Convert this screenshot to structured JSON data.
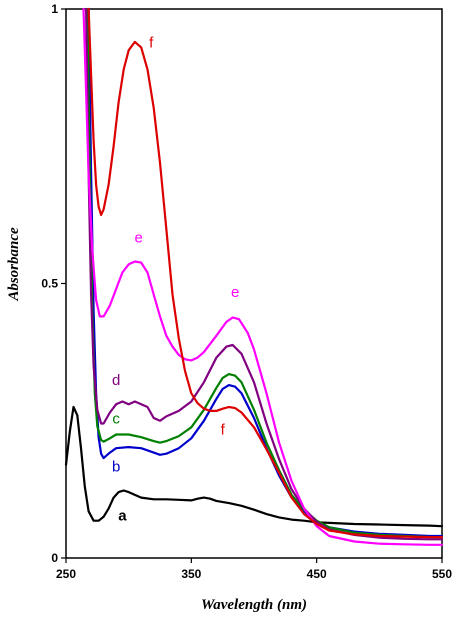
{
  "chart_data": {
    "type": "line",
    "xlabel": "Wavelength (nm)",
    "ylabel": "Absorbance",
    "xlim": [
      250,
      550
    ],
    "ylim": [
      0,
      1
    ],
    "x_ticks": [
      {
        "value": 250,
        "label": "250"
      },
      {
        "value": 350,
        "label": "350"
      },
      {
        "value": 450,
        "label": "450"
      },
      {
        "value": 550,
        "label": "550"
      }
    ],
    "y_ticks": [
      {
        "value": 0,
        "label": "0"
      },
      {
        "value": 0.5,
        "label": "0.5"
      },
      {
        "value": 1,
        "label": "1"
      }
    ],
    "grid": false,
    "legend": "none",
    "series": [
      {
        "name": "a",
        "color": "#000000",
        "points": [
          [
            250,
            0.17
          ],
          [
            253,
            0.23
          ],
          [
            256,
            0.275
          ],
          [
            259,
            0.26
          ],
          [
            262,
            0.2
          ],
          [
            265,
            0.13
          ],
          [
            268,
            0.085
          ],
          [
            272,
            0.068
          ],
          [
            276,
            0.068
          ],
          [
            280,
            0.075
          ],
          [
            284,
            0.09
          ],
          [
            288,
            0.11
          ],
          [
            292,
            0.12
          ],
          [
            296,
            0.123
          ],
          [
            300,
            0.12
          ],
          [
            305,
            0.115
          ],
          [
            310,
            0.11
          ],
          [
            320,
            0.107
          ],
          [
            330,
            0.107
          ],
          [
            340,
            0.106
          ],
          [
            350,
            0.105
          ],
          [
            355,
            0.108
          ],
          [
            360,
            0.11
          ],
          [
            365,
            0.108
          ],
          [
            370,
            0.104
          ],
          [
            380,
            0.1
          ],
          [
            390,
            0.095
          ],
          [
            400,
            0.088
          ],
          [
            410,
            0.08
          ],
          [
            420,
            0.074
          ],
          [
            430,
            0.07
          ],
          [
            440,
            0.068
          ],
          [
            450,
            0.065
          ],
          [
            460,
            0.064
          ],
          [
            480,
            0.062
          ],
          [
            500,
            0.061
          ],
          [
            520,
            0.06
          ],
          [
            540,
            0.059
          ],
          [
            550,
            0.058
          ]
        ]
      },
      {
        "name": "b",
        "color": "#0000cc",
        "points": [
          [
            268,
            1.0
          ],
          [
            270,
            0.7
          ],
          [
            272,
            0.45
          ],
          [
            274,
            0.3
          ],
          [
            276,
            0.22
          ],
          [
            278,
            0.19
          ],
          [
            280,
            0.182
          ],
          [
            285,
            0.192
          ],
          [
            290,
            0.2
          ],
          [
            300,
            0.202
          ],
          [
            310,
            0.2
          ],
          [
            320,
            0.192
          ],
          [
            325,
            0.188
          ],
          [
            330,
            0.19
          ],
          [
            340,
            0.2
          ],
          [
            350,
            0.218
          ],
          [
            360,
            0.25
          ],
          [
            370,
            0.29
          ],
          [
            375,
            0.308
          ],
          [
            380,
            0.315
          ],
          [
            385,
            0.312
          ],
          [
            390,
            0.3
          ],
          [
            400,
            0.255
          ],
          [
            410,
            0.2
          ],
          [
            420,
            0.15
          ],
          [
            430,
            0.11
          ],
          [
            440,
            0.085
          ],
          [
            450,
            0.066
          ],
          [
            460,
            0.056
          ],
          [
            480,
            0.048
          ],
          [
            500,
            0.044
          ],
          [
            520,
            0.042
          ],
          [
            540,
            0.04
          ],
          [
            550,
            0.04
          ]
        ]
      },
      {
        "name": "c",
        "color": "#008000",
        "points": [
          [
            267,
            1.0
          ],
          [
            269,
            0.7
          ],
          [
            271,
            0.45
          ],
          [
            273,
            0.3
          ],
          [
            275,
            0.24
          ],
          [
            278,
            0.215
          ],
          [
            280,
            0.212
          ],
          [
            285,
            0.218
          ],
          [
            290,
            0.225
          ],
          [
            300,
            0.225
          ],
          [
            310,
            0.22
          ],
          [
            320,
            0.213
          ],
          [
            325,
            0.21
          ],
          [
            330,
            0.213
          ],
          [
            340,
            0.222
          ],
          [
            350,
            0.238
          ],
          [
            360,
            0.27
          ],
          [
            370,
            0.31
          ],
          [
            375,
            0.328
          ],
          [
            380,
            0.335
          ],
          [
            385,
            0.332
          ],
          [
            390,
            0.32
          ],
          [
            400,
            0.27
          ],
          [
            410,
            0.21
          ],
          [
            420,
            0.16
          ],
          [
            430,
            0.115
          ],
          [
            440,
            0.088
          ],
          [
            450,
            0.068
          ],
          [
            460,
            0.056
          ],
          [
            480,
            0.046
          ],
          [
            500,
            0.042
          ],
          [
            520,
            0.04
          ],
          [
            540,
            0.038
          ],
          [
            550,
            0.038
          ]
        ]
      },
      {
        "name": "d",
        "color": "#800080",
        "points": [
          [
            266,
            1.0
          ],
          [
            268,
            0.7
          ],
          [
            270,
            0.48
          ],
          [
            272,
            0.35
          ],
          [
            275,
            0.27
          ],
          [
            278,
            0.245
          ],
          [
            280,
            0.245
          ],
          [
            285,
            0.265
          ],
          [
            290,
            0.28
          ],
          [
            295,
            0.285
          ],
          [
            300,
            0.28
          ],
          [
            305,
            0.285
          ],
          [
            310,
            0.28
          ],
          [
            315,
            0.275
          ],
          [
            320,
            0.255
          ],
          [
            325,
            0.25
          ],
          [
            330,
            0.258
          ],
          [
            340,
            0.268
          ],
          [
            350,
            0.285
          ],
          [
            360,
            0.32
          ],
          [
            370,
            0.365
          ],
          [
            378,
            0.385
          ],
          [
            383,
            0.388
          ],
          [
            390,
            0.372
          ],
          [
            400,
            0.32
          ],
          [
            410,
            0.245
          ],
          [
            420,
            0.18
          ],
          [
            430,
            0.125
          ],
          [
            440,
            0.09
          ],
          [
            450,
            0.066
          ],
          [
            460,
            0.052
          ],
          [
            480,
            0.042
          ],
          [
            500,
            0.037
          ],
          [
            520,
            0.035
          ],
          [
            540,
            0.034
          ],
          [
            550,
            0.034
          ]
        ]
      },
      {
        "name": "e",
        "color": "#ff00ff",
        "points": [
          [
            264,
            1.0
          ],
          [
            266,
            0.85
          ],
          [
            268,
            0.7
          ],
          [
            271,
            0.56
          ],
          [
            274,
            0.47
          ],
          [
            277,
            0.44
          ],
          [
            280,
            0.44
          ],
          [
            285,
            0.46
          ],
          [
            290,
            0.49
          ],
          [
            295,
            0.52
          ],
          [
            300,
            0.535
          ],
          [
            305,
            0.54
          ],
          [
            310,
            0.538
          ],
          [
            315,
            0.52
          ],
          [
            320,
            0.48
          ],
          [
            325,
            0.44
          ],
          [
            330,
            0.405
          ],
          [
            335,
            0.385
          ],
          [
            340,
            0.37
          ],
          [
            345,
            0.362
          ],
          [
            350,
            0.36
          ],
          [
            355,
            0.365
          ],
          [
            360,
            0.375
          ],
          [
            370,
            0.405
          ],
          [
            378,
            0.43
          ],
          [
            383,
            0.438
          ],
          [
            388,
            0.435
          ],
          [
            395,
            0.41
          ],
          [
            400,
            0.38
          ],
          [
            410,
            0.3
          ],
          [
            420,
            0.21
          ],
          [
            430,
            0.14
          ],
          [
            440,
            0.09
          ],
          [
            450,
            0.058
          ],
          [
            460,
            0.04
          ],
          [
            480,
            0.03
          ],
          [
            500,
            0.026
          ],
          [
            520,
            0.025
          ],
          [
            540,
            0.024
          ],
          [
            550,
            0.024
          ]
        ]
      },
      {
        "name": "f",
        "color": "#dd0000",
        "points": [
          [
            268,
            1.0
          ],
          [
            270,
            0.88
          ],
          [
            272,
            0.76
          ],
          [
            274,
            0.68
          ],
          [
            276,
            0.64
          ],
          [
            278,
            0.625
          ],
          [
            280,
            0.635
          ],
          [
            284,
            0.68
          ],
          [
            288,
            0.75
          ],
          [
            292,
            0.83
          ],
          [
            296,
            0.89
          ],
          [
            300,
            0.925
          ],
          [
            305,
            0.94
          ],
          [
            310,
            0.93
          ],
          [
            315,
            0.89
          ],
          [
            320,
            0.82
          ],
          [
            325,
            0.72
          ],
          [
            330,
            0.6
          ],
          [
            335,
            0.48
          ],
          [
            340,
            0.4
          ],
          [
            345,
            0.34
          ],
          [
            350,
            0.3
          ],
          [
            355,
            0.282
          ],
          [
            360,
            0.272
          ],
          [
            365,
            0.268
          ],
          [
            370,
            0.268
          ],
          [
            375,
            0.272
          ],
          [
            380,
            0.275
          ],
          [
            385,
            0.273
          ],
          [
            390,
            0.265
          ],
          [
            400,
            0.238
          ],
          [
            410,
            0.198
          ],
          [
            420,
            0.155
          ],
          [
            430,
            0.11
          ],
          [
            440,
            0.08
          ],
          [
            450,
            0.062
          ],
          [
            460,
            0.05
          ],
          [
            480,
            0.043
          ],
          [
            500,
            0.04
          ],
          [
            520,
            0.039
          ],
          [
            540,
            0.038
          ],
          [
            550,
            0.038
          ]
        ]
      }
    ],
    "annotations": [
      {
        "text": "f",
        "color": "#dd0000",
        "x": 318,
        "y": 0.93
      },
      {
        "text": "e",
        "color": "#ff00ff",
        "x": 308,
        "y": 0.575
      },
      {
        "text": "e",
        "color": "#ff00ff",
        "x": 385,
        "y": 0.475
      },
      {
        "text": "d",
        "color": "#800080",
        "x": 290,
        "y": 0.315
      },
      {
        "text": "c",
        "color": "#008000",
        "x": 290,
        "y": 0.245
      },
      {
        "text": "b",
        "color": "#0000cc",
        "x": 290,
        "y": 0.158
      },
      {
        "text": "f",
        "color": "#dd0000",
        "x": 375,
        "y": 0.225
      },
      {
        "text": "a",
        "color": "#000000",
        "x": 295,
        "y": 0.068
      }
    ]
  }
}
